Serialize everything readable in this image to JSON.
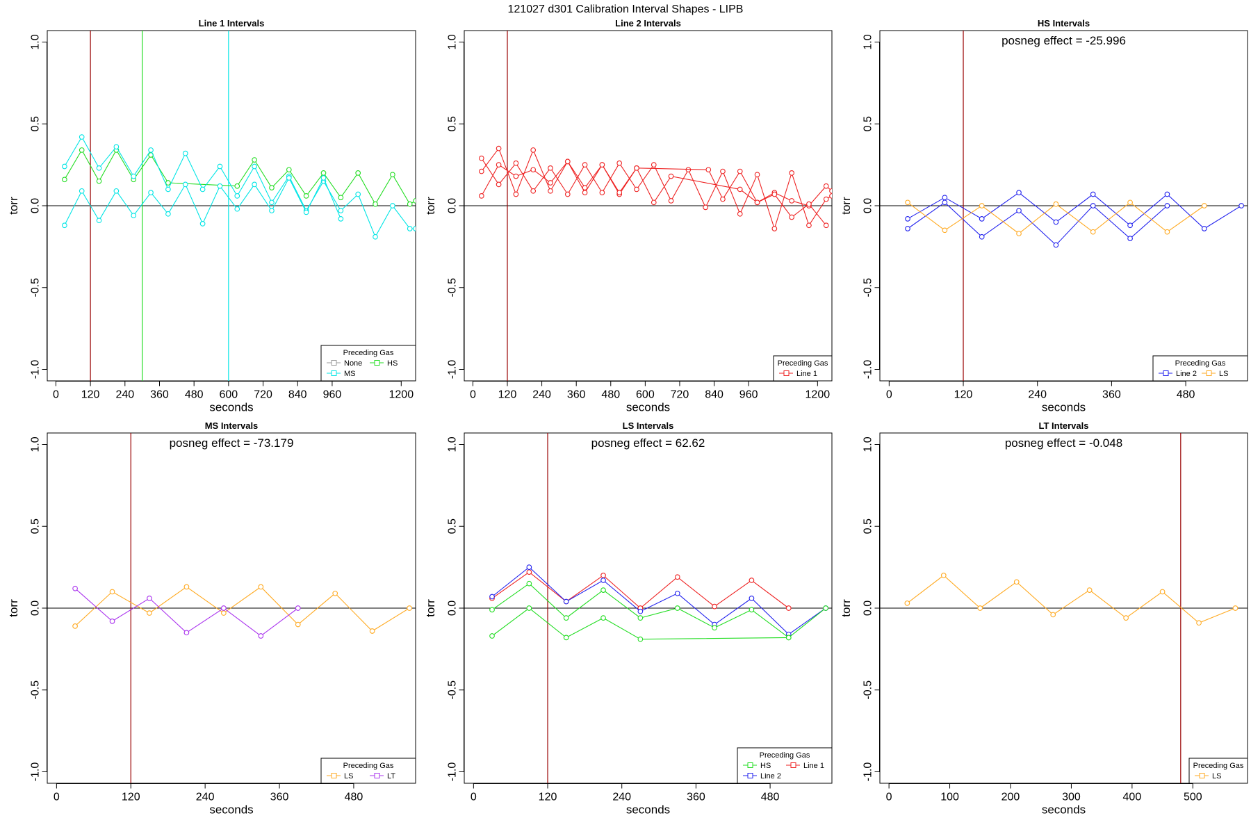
{
  "figure": {
    "title": "121027   d301   Calibration Interval Shapes - LIPB"
  },
  "colors": {
    "none": "#999999",
    "MS": "#00e5e5",
    "HS": "#22dd22",
    "Line1": "#ee2222",
    "Line2": "#2222ee",
    "LS": "#ffaa22",
    "LT": "#aa33ee",
    "vline_default": "#990000",
    "axis": "#000000"
  },
  "chart_data": [
    {
      "type": "line",
      "title": "Line 1 Intervals",
      "xlabel": "seconds",
      "ylabel": "torr",
      "xlim": [
        -30,
        1250
      ],
      "ylim": [
        -1.07,
        1.07
      ],
      "xticks": [
        0,
        120,
        240,
        360,
        480,
        600,
        720,
        840,
        960,
        1200
      ],
      "yticks": [
        -1.0,
        -0.5,
        0.0,
        0.5,
        1.0
      ],
      "ytick_labels": [
        "-1.0",
        "-0.5",
        "0.0",
        "0.5",
        "1.0"
      ],
      "vlines": [
        {
          "x": 120,
          "color": "#990000"
        },
        {
          "x": 300,
          "color": "#22dd22"
        },
        {
          "x": 600,
          "color": "#00e5e5"
        }
      ],
      "annotation": "",
      "legend": {
        "title": "Preceding Gas",
        "position": "bottom-right",
        "entries": [
          {
            "label": "None",
            "color": "#999999"
          },
          {
            "label": "HS",
            "color": "#22dd22"
          },
          {
            "label": "MS",
            "color": "#00e5e5"
          }
        ]
      },
      "series": [
        {
          "name": "HS",
          "color": "#22dd22",
          "x": [
            30,
            90,
            150,
            210,
            270,
            330,
            390,
            630,
            690,
            750,
            810,
            870,
            930,
            990,
            1050,
            1110,
            1170,
            1230,
            1250
          ],
          "y": [
            0.16,
            0.34,
            0.15,
            0.34,
            0.16,
            0.31,
            0.14,
            0.12,
            0.28,
            0.11,
            0.22,
            0.06,
            0.2,
            0.05,
            0.2,
            0.01,
            0.19,
            0.01,
            0.03
          ]
        },
        {
          "name": "MS",
          "color": "#00e5e5",
          "x": [
            30,
            90,
            150,
            210,
            270,
            330,
            390,
            450,
            510,
            570,
            630,
            690,
            750,
            810,
            870,
            930,
            990,
            1050,
            1110,
            1170,
            1230,
            1250
          ],
          "y": [
            0.24,
            0.42,
            0.23,
            0.36,
            0.18,
            0.34,
            0.1,
            0.32,
            0.1,
            0.24,
            0.06,
            0.24,
            0.02,
            0.18,
            -0.03,
            0.15,
            -0.03,
            0.07,
            -0.19,
            0.0,
            -0.14,
            -0.14
          ]
        },
        {
          "name": "MS",
          "color": "#00e5e5",
          "x": [
            30,
            90,
            150,
            210,
            270,
            330,
            390,
            450,
            510,
            570,
            630,
            690,
            750,
            810,
            870,
            930,
            990
          ],
          "y": [
            -0.12,
            0.09,
            -0.09,
            0.09,
            -0.06,
            0.08,
            -0.05,
            0.13,
            -0.11,
            0.12,
            -0.02,
            0.13,
            -0.03,
            0.17,
            -0.04,
            0.17,
            -0.08
          ]
        }
      ]
    },
    {
      "type": "line",
      "title": "Line 2 Intervals",
      "xlabel": "seconds",
      "ylabel": "torr",
      "xlim": [
        -30,
        1250
      ],
      "ylim": [
        -1.07,
        1.07
      ],
      "xticks": [
        0,
        120,
        240,
        360,
        480,
        600,
        720,
        840,
        960,
        1200
      ],
      "yticks": [
        -1.0,
        -0.5,
        0.0,
        0.5,
        1.0
      ],
      "ytick_labels": [
        "-1.0",
        "-0.5",
        "0.0",
        "0.5",
        "1.0"
      ],
      "vlines": [
        {
          "x": 120,
          "color": "#990000"
        }
      ],
      "annotation": "",
      "legend": {
        "title": "Preceding Gas",
        "position": "bottom-right",
        "entries": [
          {
            "label": "Line 1",
            "color": "#ee2222"
          }
        ]
      },
      "series": [
        {
          "name": "Line 1",
          "color": "#ee2222",
          "x": [
            30,
            90,
            150,
            210,
            270,
            330,
            390,
            450,
            510,
            570,
            630,
            690,
            750,
            810,
            870,
            930,
            990,
            1050,
            1110,
            1170,
            1230,
            1250
          ],
          "y": [
            0.29,
            0.13,
            0.26,
            0.09,
            0.23,
            0.07,
            0.25,
            0.08,
            0.26,
            0.1,
            0.25,
            0.03,
            0.22,
            -0.01,
            0.21,
            -0.05,
            0.19,
            -0.14,
            0.2,
            -0.12,
            0.04,
            0.06
          ]
        },
        {
          "name": "Line 1",
          "color": "#ee2222",
          "x": [
            30,
            90,
            150,
            210,
            270,
            330,
            390,
            450,
            510,
            570,
            820,
            870,
            930,
            990,
            1050,
            1110,
            1170,
            1230,
            1250
          ],
          "y": [
            0.21,
            0.35,
            0.07,
            0.34,
            0.09,
            0.27,
            0.08,
            0.25,
            0.07,
            0.23,
            0.22,
            0.04,
            0.21,
            0.02,
            0.08,
            0.03,
            0.0,
            0.12,
            0.09
          ]
        },
        {
          "name": "Line 1",
          "color": "#ee2222",
          "x": [
            30,
            90,
            150,
            210,
            270,
            330,
            390,
            450,
            510,
            570,
            630,
            690,
            930,
            990,
            1050,
            1110,
            1170,
            1230
          ],
          "y": [
            0.06,
            0.25,
            0.18,
            0.22,
            0.14,
            0.27,
            0.11,
            0.25,
            0.08,
            0.23,
            0.02,
            0.18,
            0.1,
            0.02,
            0.07,
            -0.07,
            0.01,
            -0.12
          ]
        }
      ]
    },
    {
      "type": "line",
      "title": "HS Intervals",
      "xlabel": "seconds",
      "ylabel": "torr",
      "xlim": [
        -15,
        580
      ],
      "ylim": [
        -1.07,
        1.07
      ],
      "xticks": [
        0,
        120,
        240,
        360,
        480
      ],
      "yticks": [
        -1.0,
        -0.5,
        0.0,
        0.5,
        1.0
      ],
      "ytick_labels": [
        "-1.0",
        "-0.5",
        "0.0",
        "0.5",
        "1.0"
      ],
      "vlines": [
        {
          "x": 120,
          "color": "#990000"
        }
      ],
      "annotation": "posneg effect = -25.996",
      "legend": {
        "title": "Preceding Gas",
        "position": "bottom-right",
        "entries": [
          {
            "label": "Line 2",
            "color": "#2222ee"
          },
          {
            "label": "LS",
            "color": "#ffaa22"
          }
        ]
      },
      "series": [
        {
          "name": "Line 2",
          "color": "#2222ee",
          "x": [
            30,
            90,
            150,
            210,
            270,
            330,
            390,
            450,
            510,
            570
          ],
          "y": [
            -0.08,
            0.05,
            -0.08,
            0.08,
            -0.1,
            0.07,
            -0.12,
            0.07,
            -0.14,
            0.0
          ]
        },
        {
          "name": "Line 2",
          "color": "#2222ee",
          "x": [
            30,
            90,
            150,
            210,
            270,
            330,
            390,
            450
          ],
          "y": [
            -0.14,
            0.02,
            -0.19,
            -0.03,
            -0.24,
            0.0,
            -0.2,
            0.0
          ]
        },
        {
          "name": "LS",
          "color": "#ffaa22",
          "x": [
            30,
            90,
            150,
            210,
            270,
            330,
            390,
            450,
            510
          ],
          "y": [
            0.02,
            -0.15,
            0.0,
            -0.17,
            0.01,
            -0.16,
            0.02,
            -0.16,
            0.0
          ]
        }
      ]
    },
    {
      "type": "line",
      "title": "MS Intervals",
      "xlabel": "seconds",
      "ylabel": "torr",
      "xlim": [
        -15,
        580
      ],
      "ylim": [
        -1.07,
        1.07
      ],
      "xticks": [
        0,
        120,
        240,
        360,
        480
      ],
      "yticks": [
        -1.0,
        -0.5,
        0.0,
        0.5,
        1.0
      ],
      "ytick_labels": [
        "-1.0",
        "-0.5",
        "0.0",
        "0.5",
        "1.0"
      ],
      "vlines": [
        {
          "x": 120,
          "color": "#990000"
        }
      ],
      "annotation": "posneg effect = -73.179",
      "legend": {
        "title": "Preceding Gas",
        "position": "bottom-right",
        "entries": [
          {
            "label": "LS",
            "color": "#ffaa22"
          },
          {
            "label": "LT",
            "color": "#aa33ee"
          }
        ]
      },
      "series": [
        {
          "name": "LS",
          "color": "#ffaa22",
          "x": [
            30,
            90,
            150,
            210,
            270,
            330,
            390,
            450,
            510,
            570
          ],
          "y": [
            -0.11,
            0.1,
            -0.03,
            0.13,
            -0.03,
            0.13,
            -0.1,
            0.09,
            -0.14,
            0.0
          ]
        },
        {
          "name": "LT",
          "color": "#aa33ee",
          "x": [
            30,
            90,
            150,
            210,
            270,
            330,
            390
          ],
          "y": [
            0.12,
            -0.08,
            0.06,
            -0.15,
            0.0,
            -0.17,
            0.0
          ]
        }
      ]
    },
    {
      "type": "line",
      "title": "LS Intervals",
      "xlabel": "seconds",
      "ylabel": "torr",
      "xlim": [
        -15,
        580
      ],
      "ylim": [
        -1.07,
        1.07
      ],
      "xticks": [
        0,
        120,
        240,
        360,
        480
      ],
      "yticks": [
        -1.0,
        -0.5,
        0.0,
        0.5,
        1.0
      ],
      "ytick_labels": [
        "-1.0",
        "-0.5",
        "0.0",
        "0.5",
        "1.0"
      ],
      "vlines": [
        {
          "x": 120,
          "color": "#990000"
        }
      ],
      "annotation": "posneg effect = 62.62",
      "legend": {
        "title": "Preceding Gas",
        "position": "bottom-right",
        "entries": [
          {
            "label": "HS",
            "color": "#22dd22"
          },
          {
            "label": "Line 1",
            "color": "#ee2222"
          },
          {
            "label": "Line 2",
            "color": "#2222ee"
          }
        ]
      },
      "series": [
        {
          "name": "Line 1",
          "color": "#ee2222",
          "x": [
            30,
            90,
            150,
            210,
            270,
            330,
            390,
            450,
            510
          ],
          "y": [
            0.06,
            0.22,
            0.04,
            0.2,
            0.0,
            0.19,
            0.01,
            0.17,
            0.0
          ]
        },
        {
          "name": "Line 2",
          "color": "#2222ee",
          "x": [
            30,
            90,
            150,
            210,
            270,
            330,
            390,
            450,
            510,
            570
          ],
          "y": [
            0.07,
            0.25,
            0.04,
            0.17,
            -0.02,
            0.09,
            -0.1,
            0.06,
            -0.16,
            0.0
          ]
        },
        {
          "name": "HS",
          "color": "#22dd22",
          "x": [
            30,
            90,
            150,
            210,
            270,
            330,
            390,
            450,
            510,
            570
          ],
          "y": [
            -0.01,
            0.15,
            -0.06,
            0.11,
            -0.06,
            0.0,
            -0.12,
            -0.01,
            -0.18,
            0.0
          ]
        },
        {
          "name": "HS",
          "color": "#22dd22",
          "x": [
            30,
            90,
            150,
            210,
            270,
            510
          ],
          "y": [
            -0.17,
            0.0,
            -0.18,
            -0.06,
            -0.19,
            -0.18
          ]
        }
      ]
    },
    {
      "type": "line",
      "title": "LT Intervals",
      "xlabel": "seconds",
      "ylabel": "torr",
      "xlim": [
        -15,
        590
      ],
      "ylim": [
        -1.07,
        1.07
      ],
      "xticks": [
        0,
        100,
        200,
        300,
        400,
        500
      ],
      "yticks": [
        -1.0,
        -0.5,
        0.0,
        0.5,
        1.0
      ],
      "ytick_labels": [
        "-1.0",
        "-0.5",
        "0.0",
        "0.5",
        "1.0"
      ],
      "vlines": [
        {
          "x": 480,
          "color": "#990000"
        }
      ],
      "annotation": "posneg effect = -0.048",
      "legend": {
        "title": "Preceding Gas",
        "position": "bottom-right",
        "entries": [
          {
            "label": "LS",
            "color": "#ffaa22"
          }
        ]
      },
      "series": [
        {
          "name": "LS",
          "color": "#ffaa22",
          "x": [
            30,
            90,
            150,
            210,
            270,
            330,
            390,
            450,
            510,
            570
          ],
          "y": [
            0.03,
            0.2,
            0.0,
            0.16,
            -0.04,
            0.11,
            -0.06,
            0.1,
            -0.09,
            0.0
          ]
        }
      ]
    }
  ]
}
